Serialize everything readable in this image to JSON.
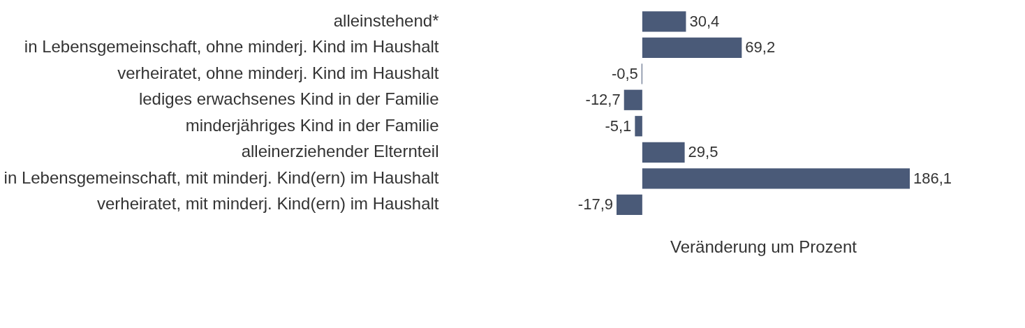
{
  "chart_data": {
    "type": "bar",
    "orientation": "horizontal",
    "xlabel": "Veränderung um Prozent",
    "categories": [
      "alleinstehend*",
      "in Lebensgemeinschaft, ohne minderj. Kind im Haushalt",
      "verheiratet, ohne minderj. Kind im Haushalt",
      "lediges erwachsenes Kind in der Familie",
      "minderjähriges Kind in der Familie",
      "alleinerziehender Elternteil",
      "in Lebensgemeinschaft, mit minderj. Kind(ern) im Haushalt",
      "verheiratet, mit minderj. Kind(ern) im Haushalt"
    ],
    "values": [
      30.4,
      69.2,
      -0.5,
      -12.7,
      -5.1,
      29.5,
      186.1,
      -17.9
    ],
    "value_labels": [
      "30,4",
      "69,2",
      "-0,5",
      "-12,7",
      "-5,1",
      "29,5",
      "186,1",
      "-17,9"
    ],
    "color": "#4a5a78"
  }
}
